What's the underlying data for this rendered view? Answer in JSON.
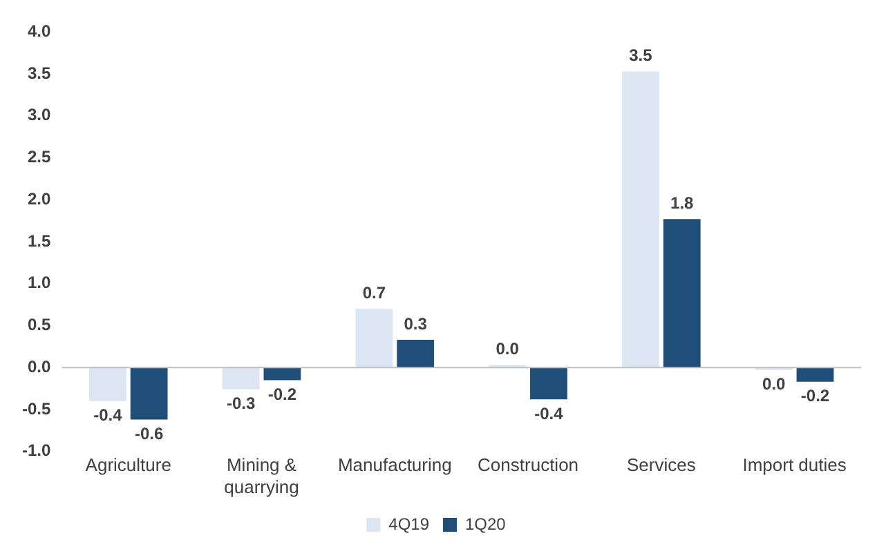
{
  "chart_data": {
    "type": "bar",
    "categories": [
      "Agriculture",
      "Mining & quarrying",
      "Manufacturing",
      "Construction",
      "Services",
      "Import duties"
    ],
    "series": [
      {
        "name": "4Q19",
        "color": "#dce6f2",
        "values": [
          -0.4,
          -0.26,
          0.7,
          0.03,
          3.53,
          -0.03
        ],
        "value_labels": [
          "-0.4",
          "-0.3",
          "0.7",
          "0.0",
          "3.5",
          "0.0"
        ]
      },
      {
        "name": "1Q20",
        "color": "#1f4e79",
        "values": [
          -0.62,
          -0.15,
          0.33,
          -0.38,
          1.77,
          -0.17
        ],
        "value_labels": [
          "-0.6",
          "-0.2",
          "0.3",
          "-0.4",
          "1.8",
          "-0.2"
        ]
      }
    ],
    "ylim": [
      -1,
      4
    ],
    "yticks": [
      {
        "value": -1,
        "label": "-1.0"
      },
      {
        "value": -0.5,
        "label": "-0.5"
      },
      {
        "value": 0,
        "label": "0.0"
      },
      {
        "value": 0.5,
        "label": "0.5"
      },
      {
        "value": 1,
        "label": "1.0"
      },
      {
        "value": 1.5,
        "label": "1.5"
      },
      {
        "value": 2,
        "label": "2.0"
      },
      {
        "value": 2.5,
        "label": "2.5"
      },
      {
        "value": 3,
        "label": "3.0"
      },
      {
        "value": 3.5,
        "label": "3.5"
      },
      {
        "value": 4,
        "label": "4.0"
      }
    ],
    "legend": "bottom"
  }
}
